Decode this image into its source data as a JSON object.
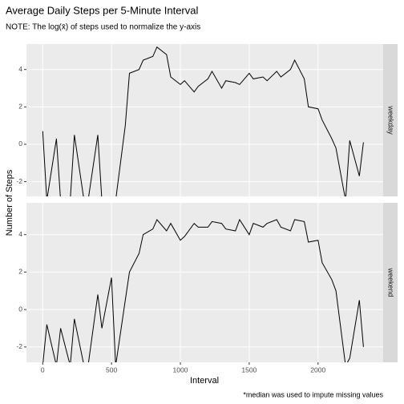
{
  "title": "Average Daily Steps per 5-Minute Interval",
  "subtitle": "NOTE: The log(x̄) of steps used to normalize the y-axis",
  "x_label": "Interval",
  "y_label": "Number of Steps",
  "caption": "*median was used to impute missing values",
  "chart_data": [
    {
      "type": "line",
      "strip": "weekday",
      "color": "#000000",
      "grid": true,
      "x": [
        0,
        30,
        100,
        130,
        200,
        230,
        300,
        330,
        400,
        430,
        500,
        530,
        600,
        630,
        700,
        730,
        800,
        830,
        900,
        930,
        1000,
        1030,
        1100,
        1130,
        1200,
        1230,
        1300,
        1330,
        1400,
        1430,
        1500,
        1530,
        1600,
        1630,
        1700,
        1730,
        1800,
        1830,
        1900,
        1930,
        2000,
        2030,
        2100,
        2130,
        2200,
        2230,
        2300,
        2330
      ],
      "values": [
        0.7,
        -3,
        0.3,
        -3,
        -3,
        0.5,
        -3,
        -3,
        0.5,
        -3,
        -3,
        -3,
        1.0,
        3.8,
        4.0,
        4.5,
        4.7,
        5.2,
        4.8,
        3.6,
        3.2,
        3.4,
        2.8,
        3.1,
        3.5,
        3.9,
        3.0,
        3.4,
        3.3,
        3.2,
        3.8,
        3.5,
        3.6,
        3.4,
        3.9,
        3.6,
        4.0,
        4.5,
        3.5,
        2.0,
        1.9,
        1.3,
        0.3,
        -0.2,
        -3,
        0.2,
        -1.7,
        0.1
      ],
      "xlim": [
        -118,
        2473
      ],
      "ylim": [
        -2.79,
        5.36
      ],
      "xticks": [
        0,
        500,
        1000,
        1500,
        2000
      ],
      "yticks": [
        -2,
        0,
        2,
        4
      ]
    },
    {
      "type": "line",
      "strip": "weekend",
      "color": "#000000",
      "grid": true,
      "x": [
        0,
        30,
        100,
        130,
        200,
        230,
        300,
        330,
        400,
        430,
        500,
        530,
        600,
        630,
        700,
        730,
        800,
        830,
        900,
        930,
        1000,
        1030,
        1100,
        1130,
        1200,
        1230,
        1300,
        1330,
        1400,
        1430,
        1500,
        1530,
        1600,
        1630,
        1700,
        1730,
        1800,
        1830,
        1900,
        1930,
        2000,
        2030,
        2100,
        2130,
        2200,
        2230,
        2300,
        2330
      ],
      "values": [
        -3,
        -0.8,
        -3,
        -1,
        -3,
        -0.5,
        -3,
        -3,
        0.8,
        -1,
        1.7,
        -3,
        0.5,
        2.0,
        3.0,
        4.0,
        4.3,
        4.8,
        4.2,
        4.6,
        3.7,
        3.9,
        4.6,
        4.4,
        4.4,
        4.7,
        4.6,
        4.3,
        4.2,
        4.8,
        4.0,
        4.6,
        4.4,
        4.6,
        4.8,
        4.4,
        4.2,
        4.8,
        4.7,
        3.6,
        3.7,
        2.5,
        1.6,
        1.0,
        -3,
        -2.6,
        0.5,
        -2
      ],
      "xlim": [
        -118,
        2473
      ],
      "ylim": [
        -2.82,
        5.7
      ],
      "xticks": [
        0,
        500,
        1000,
        1500,
        2000
      ],
      "yticks": [
        -2,
        0,
        2,
        4
      ]
    }
  ]
}
